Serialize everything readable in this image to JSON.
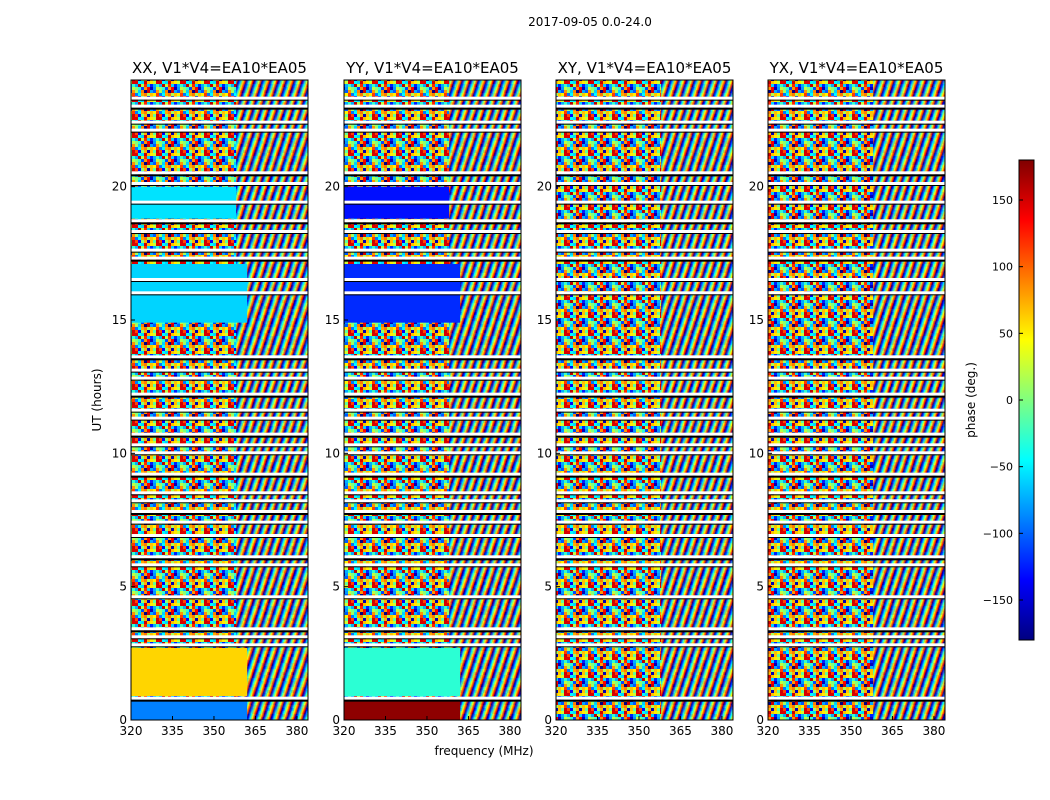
{
  "figure": {
    "suptitle": "2017-09-05 0.0-24.0"
  },
  "chart_data": {
    "type": "heatmap",
    "title": "2017-09-05 0.0-24.0",
    "xlabel": "frequency (MHz)",
    "ylabel": "UT (hours)",
    "xlim": [
      320,
      384
    ],
    "ylim": [
      0,
      24
    ],
    "x_ticks": [
      320,
      335,
      350,
      365,
      380
    ],
    "y_ticks": [
      0,
      5,
      10,
      15,
      20
    ],
    "panels": [
      {
        "title": "XX, V1*V4=EA10*EA05",
        "pol": "XX"
      },
      {
        "title": "YY, V1*V4=EA10*EA05",
        "pol": "YY"
      },
      {
        "title": "XY, V1*V4=EA10*EA05",
        "pol": "XY"
      },
      {
        "title": "YX, V1*V4=EA10*EA05",
        "pol": "YX"
      }
    ],
    "colorbar": {
      "label": "phase (deg.)",
      "range": [
        -180,
        180
      ],
      "ticks": [
        -150,
        -100,
        -50,
        0,
        50,
        100,
        150
      ],
      "tick_labels": [
        "−150",
        "−100",
        "−50",
        "0",
        "50",
        "100",
        "150"
      ],
      "colormap": "jet"
    },
    "flagged_ut_hours": [
      0.8,
      2.8,
      3.1,
      3.4,
      4.6,
      5.8,
      6.1,
      6.9,
      7.4,
      7.8,
      8.2,
      8.5,
      9.2,
      10.0,
      10.3,
      10.7,
      11.3,
      11.6,
      12.2,
      12.8,
      13.1,
      13.6,
      16.0,
      16.5,
      17.3,
      17.6,
      18.3,
      18.7,
      19.4,
      20.1,
      20.5,
      22.1,
      22.4,
      23.0,
      23.3
    ],
    "uniform_phase_blocks": [
      {
        "pol": "XX",
        "ut": [
          0.0,
          0.8
        ],
        "freq": [
          320,
          362
        ],
        "phase_deg": -90
      },
      {
        "pol": "XX",
        "ut": [
          0.9,
          2.7
        ],
        "freq": [
          320,
          362
        ],
        "phase_deg": 60
      },
      {
        "pol": "XX",
        "ut": [
          14.9,
          17.1
        ],
        "freq": [
          320,
          362
        ],
        "phase_deg": -60
      },
      {
        "pol": "XX",
        "ut": [
          18.8,
          20.0
        ],
        "freq": [
          320,
          358
        ],
        "phase_deg": -55
      },
      {
        "pol": "YY",
        "ut": [
          0.0,
          0.8
        ],
        "freq": [
          320,
          362
        ],
        "phase_deg": 175
      },
      {
        "pol": "YY",
        "ut": [
          0.9,
          2.7
        ],
        "freq": [
          320,
          362
        ],
        "phase_deg": -30
      },
      {
        "pol": "YY",
        "ut": [
          14.9,
          17.1
        ],
        "freq": [
          320,
          362
        ],
        "phase_deg": -120
      },
      {
        "pol": "YY",
        "ut": [
          18.8,
          20.0
        ],
        "freq": [
          320,
          358
        ],
        "phase_deg": -130
      }
    ]
  }
}
